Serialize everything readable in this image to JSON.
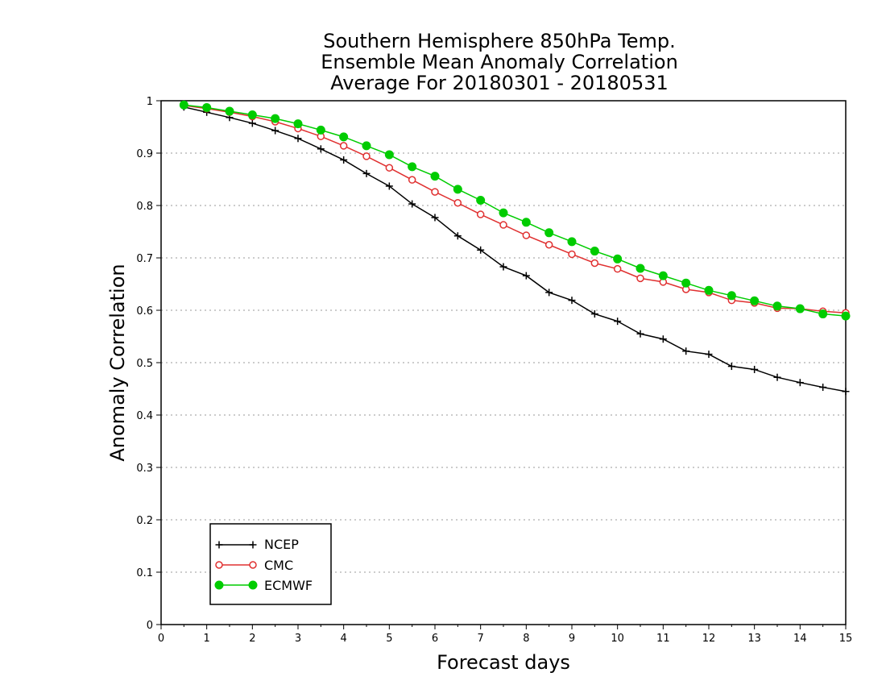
{
  "chart_data": {
    "type": "line",
    "title": [
      "Southern Hemisphere 850hPa Temp.",
      "Ensemble Mean Anomaly Correlation",
      "Average For 20180301 - 20180531"
    ],
    "xlabel": "Forecast days",
    "ylabel": "Anomaly Correlation",
    "xlim": [
      0,
      15
    ],
    "ylim": [
      0,
      1
    ],
    "x_ticks": [
      "0",
      "1",
      "2",
      "3",
      "4",
      "5",
      "6",
      "7",
      "8",
      "9",
      "10",
      "11",
      "12",
      "13",
      "14",
      "15"
    ],
    "y_ticks": [
      "0",
      "0.1",
      "0.2",
      "0.3",
      "0.4",
      "0.5",
      "0.6",
      "0.7",
      "0.8",
      "0.9",
      "1"
    ],
    "grid": "horizontal dotted",
    "legend_position": "bottom-left",
    "x": [
      0.5,
      1,
      1.5,
      2,
      2.5,
      3,
      3.5,
      4,
      4.5,
      5,
      5.5,
      6,
      6.5,
      7,
      7.5,
      8,
      8.5,
      9,
      9.5,
      10,
      10.5,
      11,
      11.5,
      12,
      12.5,
      13,
      13.5,
      14,
      14.5,
      15
    ],
    "series": [
      {
        "name": "NCEP",
        "color": "#000000",
        "marker": "plus",
        "values": [
          0.988,
          0.978,
          0.968,
          0.957,
          0.943,
          0.928,
          0.908,
          0.887,
          0.861,
          0.837,
          0.803,
          0.777,
          0.742,
          0.715,
          0.683,
          0.666,
          0.634,
          0.619,
          0.593,
          0.579,
          0.555,
          0.545,
          0.522,
          0.516,
          0.493,
          0.487,
          0.472,
          0.462,
          0.453,
          0.445
        ]
      },
      {
        "name": "CMC",
        "color": "#e03030",
        "marker": "open-circle",
        "values": [
          0.991,
          0.985,
          0.978,
          0.97,
          0.96,
          0.947,
          0.932,
          0.914,
          0.894,
          0.872,
          0.849,
          0.826,
          0.805,
          0.783,
          0.763,
          0.743,
          0.725,
          0.707,
          0.69,
          0.679,
          0.661,
          0.654,
          0.64,
          0.634,
          0.619,
          0.614,
          0.604,
          0.603,
          0.598,
          0.595
        ]
      },
      {
        "name": "ECMWF",
        "color": "#00cc00",
        "marker": "filled-circle",
        "values": [
          0.992,
          0.987,
          0.98,
          0.973,
          0.966,
          0.956,
          0.944,
          0.931,
          0.914,
          0.897,
          0.874,
          0.856,
          0.831,
          0.81,
          0.786,
          0.768,
          0.748,
          0.731,
          0.713,
          0.698,
          0.68,
          0.666,
          0.652,
          0.638,
          0.628,
          0.618,
          0.608,
          0.603,
          0.593,
          0.589
        ]
      }
    ]
  }
}
